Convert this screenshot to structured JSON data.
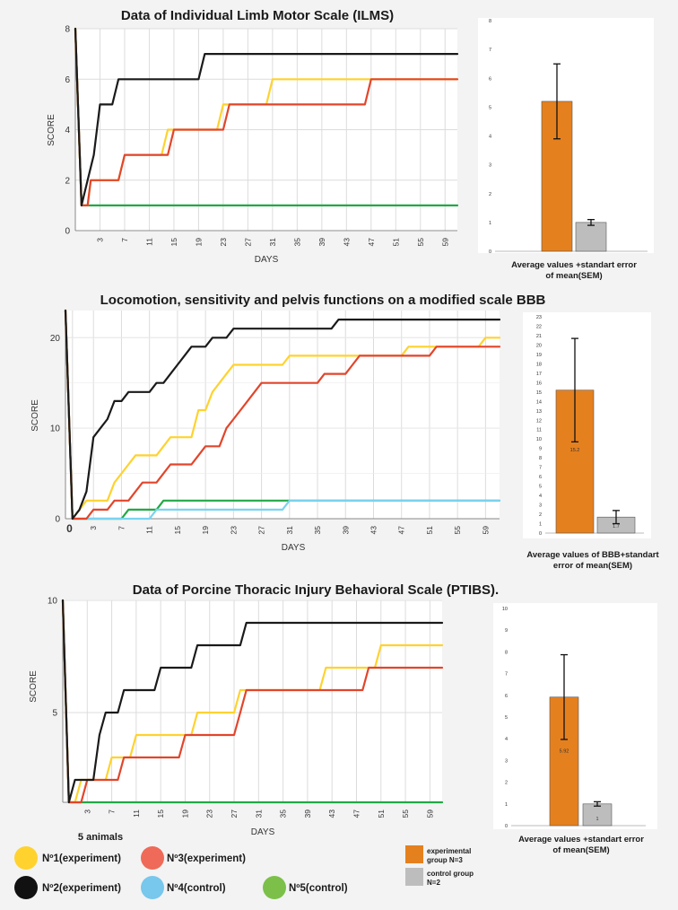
{
  "colors": {
    "s1": "#ffd22e",
    "s2": "#1a1a1a",
    "s3": "#e2452b",
    "s4": "#7ad3f0",
    "s5": "#22a846",
    "experimental_bar": "#e5801f",
    "control_bar": "#bdbdbd",
    "legend_s1": "#ffd22e",
    "legend_s2": "#111111",
    "legend_s3": "#ef6a58",
    "legend_s4": "#78c7ec",
    "legend_s5": "#7cc04a"
  },
  "chart_data": [
    {
      "type": "line",
      "title": "Data of Individual Limb  Motor Scale (ILMS)",
      "xlabel": "DAYS",
      "ylabel": "SCORE",
      "xlim": [
        -1,
        61
      ],
      "ylim": [
        0,
        8
      ],
      "x_ticks": [
        "3",
        "7",
        "11",
        "15",
        "19",
        "23",
        "27",
        "31",
        "35",
        "39",
        "43",
        "47",
        "51",
        "55",
        "59"
      ],
      "y_ticks": [
        "0",
        "2",
        "4",
        "6",
        "8"
      ],
      "series": [
        {
          "name": "Nº1(experiment)",
          "points": [
            [
              -1,
              8
            ],
            [
              0,
              1
            ],
            [
              1,
              1
            ],
            [
              1.5,
              2
            ],
            [
              6,
              2
            ],
            [
              7,
              3
            ],
            [
              13,
              3
            ],
            [
              14,
              4
            ],
            [
              22,
              4
            ],
            [
              23,
              5
            ],
            [
              30,
              5
            ],
            [
              31,
              6
            ],
            [
              61,
              6
            ]
          ]
        },
        {
          "name": "Nº3(experiment)",
          "points": [
            [
              -1,
              8
            ],
            [
              0,
              1
            ],
            [
              1,
              1
            ],
            [
              1.5,
              2
            ],
            [
              6,
              2
            ],
            [
              7,
              3
            ],
            [
              14,
              3
            ],
            [
              15,
              4
            ],
            [
              23,
              4
            ],
            [
              24,
              5
            ],
            [
              46,
              5
            ],
            [
              47,
              6
            ],
            [
              61,
              6
            ]
          ]
        },
        {
          "name": "Nº2(experiment)",
          "points": [
            [
              -1,
              8
            ],
            [
              0,
              1
            ],
            [
              1,
              2
            ],
            [
              2,
              3
            ],
            [
              3,
              5
            ],
            [
              5,
              5
            ],
            [
              6,
              6
            ],
            [
              19,
              6
            ],
            [
              20,
              7
            ],
            [
              61,
              7
            ]
          ]
        },
        {
          "name": "Nº5(control)",
          "points": [
            [
              -1,
              8
            ],
            [
              0,
              1
            ],
            [
              61,
              1
            ]
          ]
        }
      ]
    },
    {
      "type": "bar",
      "title": "Average values +standart error of mean(SEM)",
      "categories": [
        "experimental group N=3",
        "control group N=2"
      ],
      "values": [
        5.2,
        1.0
      ],
      "errors": [
        1.3,
        0.1
      ],
      "ylim": [
        0,
        8
      ],
      "y_ticks": [
        "0",
        "1",
        "2",
        "3",
        "4",
        "5",
        "6",
        "7",
        "8"
      ],
      "value_labels": [
        "",
        ""
      ]
    },
    {
      "type": "line",
      "title": "Locomotion, sensitivity and pelvis functions on a modified scale BBB",
      "xlabel": "DAYS",
      "ylabel": "SCORE",
      "xlim": [
        -1,
        61
      ],
      "ylim": [
        0,
        23
      ],
      "x_ticks": [
        "0",
        "3",
        "7",
        "11",
        "15",
        "19",
        "23",
        "27",
        "31",
        "35",
        "39",
        "43",
        "47",
        "51",
        "55",
        "59"
      ],
      "y_ticks": [
        "0",
        "10",
        "20"
      ],
      "series": [
        {
          "name": "Nº1(experiment)",
          "points": [
            [
              -1,
              23
            ],
            [
              0,
              0
            ],
            [
              1,
              1
            ],
            [
              2,
              2
            ],
            [
              5,
              2
            ],
            [
              6,
              4
            ],
            [
              7,
              5
            ],
            [
              8,
              6
            ],
            [
              9,
              7
            ],
            [
              12,
              7
            ],
            [
              13,
              8
            ],
            [
              14,
              9
            ],
            [
              17,
              9
            ],
            [
              18,
              12
            ],
            [
              19,
              12
            ],
            [
              20,
              14
            ],
            [
              21,
              15
            ],
            [
              22,
              16
            ],
            [
              23,
              17
            ],
            [
              30,
              17
            ],
            [
              31,
              18
            ],
            [
              47,
              18
            ],
            [
              48,
              19
            ],
            [
              58,
              19
            ],
            [
              59,
              20
            ],
            [
              61,
              20
            ]
          ]
        },
        {
          "name": "Nº3(experiment)",
          "points": [
            [
              -1,
              23
            ],
            [
              0,
              0
            ],
            [
              2,
              0
            ],
            [
              3,
              1
            ],
            [
              5,
              1
            ],
            [
              6,
              2
            ],
            [
              8,
              2
            ],
            [
              9,
              3
            ],
            [
              10,
              4
            ],
            [
              12,
              4
            ],
            [
              13,
              5
            ],
            [
              14,
              6
            ],
            [
              17,
              6
            ],
            [
              18,
              7
            ],
            [
              19,
              8
            ],
            [
              21,
              8
            ],
            [
              22,
              10
            ],
            [
              23,
              11
            ],
            [
              24,
              12
            ],
            [
              25,
              13
            ],
            [
              26,
              14
            ],
            [
              27,
              15
            ],
            [
              35,
              15
            ],
            [
              36,
              16
            ],
            [
              39,
              16
            ],
            [
              40,
              17
            ],
            [
              41,
              18
            ],
            [
              51,
              18
            ],
            [
              52,
              19
            ],
            [
              61,
              19
            ]
          ]
        },
        {
          "name": "Nº2(experiment)",
          "points": [
            [
              -1,
              23
            ],
            [
              0,
              0
            ],
            [
              1,
              1
            ],
            [
              2,
              3
            ],
            [
              3,
              9
            ],
            [
              4,
              10
            ],
            [
              5,
              11
            ],
            [
              6,
              13
            ],
            [
              7,
              13
            ],
            [
              8,
              14
            ],
            [
              11,
              14
            ],
            [
              12,
              15
            ],
            [
              13,
              15
            ],
            [
              14,
              16
            ],
            [
              15,
              17
            ],
            [
              16,
              18
            ],
            [
              17,
              19
            ],
            [
              19,
              19
            ],
            [
              20,
              20
            ],
            [
              22,
              20
            ],
            [
              23,
              21
            ],
            [
              37,
              21
            ],
            [
              38,
              22
            ],
            [
              61,
              22
            ]
          ]
        },
        {
          "name": "Nº4(control)",
          "points": [
            [
              -1,
              23
            ],
            [
              0,
              0
            ],
            [
              11,
              0
            ],
            [
              12,
              1
            ],
            [
              30,
              1
            ],
            [
              31,
              2
            ],
            [
              61,
              2
            ]
          ]
        },
        {
          "name": "Nº5(control)",
          "points": [
            [
              -1,
              23
            ],
            [
              0,
              0
            ],
            [
              7,
              0
            ],
            [
              8,
              1
            ],
            [
              12,
              1
            ],
            [
              13,
              2
            ],
            [
              61,
              2
            ]
          ]
        }
      ]
    },
    {
      "type": "bar",
      "title": "Average values of BBB+standart error of mean(SEM)",
      "categories": [
        "experimental group N=3",
        "control group N=2"
      ],
      "values": [
        15.2,
        1.7
      ],
      "errors": [
        5.5,
        0.7
      ],
      "ylim": [
        0,
        23
      ],
      "y_ticks": [
        "0",
        "1",
        "2",
        "3",
        "4",
        "5",
        "6",
        "7",
        "8",
        "9",
        "10",
        "11",
        "12",
        "13",
        "14",
        "15",
        "16",
        "17",
        "18",
        "19",
        "20",
        "21",
        "22",
        "23"
      ],
      "value_labels": [
        "15.2",
        "1.7"
      ]
    },
    {
      "type": "line",
      "title": "Data of Porcine Thoracic Injury Behavioral Scale (PTIBS).",
      "xlabel": "DAYS",
      "ylabel": "SCORE",
      "xlim": [
        -1,
        61
      ],
      "ylim": [
        1,
        10
      ],
      "x_ticks": [
        "3",
        "7",
        "11",
        "15",
        "19",
        "23",
        "27",
        "31",
        "35",
        "39",
        "43",
        "47",
        "51",
        "55",
        "59"
      ],
      "y_ticks": [
        "5",
        "10"
      ],
      "series": [
        {
          "name": "Nº1(experiment)",
          "points": [
            [
              -1,
              10
            ],
            [
              0,
              1
            ],
            [
              1,
              1
            ],
            [
              2,
              2
            ],
            [
              6,
              2
            ],
            [
              7,
              3
            ],
            [
              10,
              3
            ],
            [
              11,
              4
            ],
            [
              19,
              4
            ],
            [
              20,
              4
            ],
            [
              21,
              5
            ],
            [
              27,
              5
            ],
            [
              28,
              6
            ],
            [
              41,
              6
            ],
            [
              42,
              7
            ],
            [
              50,
              7
            ],
            [
              51,
              8
            ],
            [
              61,
              8
            ]
          ]
        },
        {
          "name": "Nº3(experiment)",
          "points": [
            [
              -1,
              10
            ],
            [
              0,
              1
            ],
            [
              2,
              1
            ],
            [
              3,
              2
            ],
            [
              8,
              2
            ],
            [
              9,
              3
            ],
            [
              18,
              3
            ],
            [
              19,
              4
            ],
            [
              27,
              4
            ],
            [
              28,
              5
            ],
            [
              29,
              6
            ],
            [
              48,
              6
            ],
            [
              49,
              7
            ],
            [
              61,
              7
            ]
          ]
        },
        {
          "name": "Nº2(experiment)",
          "points": [
            [
              -1,
              10
            ],
            [
              0,
              1
            ],
            [
              1,
              2
            ],
            [
              4,
              2
            ],
            [
              5,
              4
            ],
            [
              6,
              5
            ],
            [
              8,
              5
            ],
            [
              9,
              6
            ],
            [
              14,
              6
            ],
            [
              15,
              7
            ],
            [
              20,
              7
            ],
            [
              21,
              8
            ],
            [
              28,
              8
            ],
            [
              29,
              9
            ],
            [
              61,
              9
            ]
          ]
        },
        {
          "name": "Nº5(control)",
          "points": [
            [
              -1,
              10
            ],
            [
              0,
              1
            ],
            [
              61,
              1
            ]
          ]
        }
      ]
    },
    {
      "type": "bar",
      "title": "Average values +standart error of mean(SEM)",
      "categories": [
        "experimental group N=3",
        "control group N=2"
      ],
      "values": [
        5.92,
        1.0
      ],
      "errors": [
        1.95,
        0.1
      ],
      "ylim": [
        0,
        10
      ],
      "y_ticks": [
        "0",
        "1",
        "2",
        "3",
        "4",
        "5",
        "6",
        "7",
        "8",
        "9",
        "10"
      ],
      "value_labels": [
        "5.92",
        "1"
      ]
    }
  ],
  "legend": {
    "heading": "5 animals",
    "animals": [
      {
        "label": "Nº1(experiment)"
      },
      {
        "label": "Nº3(experiment)"
      },
      {
        "label": "Nº2(experiment)"
      },
      {
        "label": "Nº4(control)"
      },
      {
        "label": "Nº5(control)"
      }
    ],
    "groups": [
      {
        "label_line1": "experimental",
        "label_line2": "group N=3"
      },
      {
        "label_line1": "control group",
        "label_line2": "N=2"
      }
    ]
  }
}
